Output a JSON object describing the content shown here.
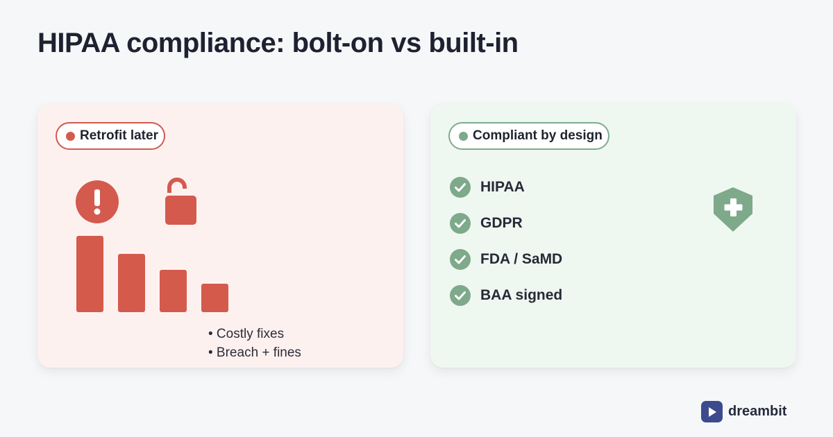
{
  "title": "HIPAA compliance: bolt-on vs built-in",
  "left_card": {
    "tag": "Retrofit later",
    "icons": [
      "alert-icon",
      "unlocked-padlock-icon"
    ],
    "declining_levels": [
      1.0,
      0.76,
      0.55,
      0.37
    ],
    "bullets": [
      "• Costly fixes",
      "• Breach + fines"
    ],
    "accent_color": "#d45a4e",
    "background_color": "#fdf1f0"
  },
  "right_card": {
    "tag": "Compliant by design",
    "checklist": [
      {
        "label": "HIPAA"
      },
      {
        "label": "GDPR"
      },
      {
        "label": "FDA / SaMD"
      },
      {
        "label": "BAA signed"
      }
    ],
    "icons": [
      "check-circle-icon",
      "medical-shield-icon"
    ],
    "accent_color": "#7ea98b",
    "background_color": "#eff7f1"
  },
  "brand": {
    "name": "dreambit",
    "logo_icon": "play-icon",
    "color": "#3b4b8e"
  }
}
